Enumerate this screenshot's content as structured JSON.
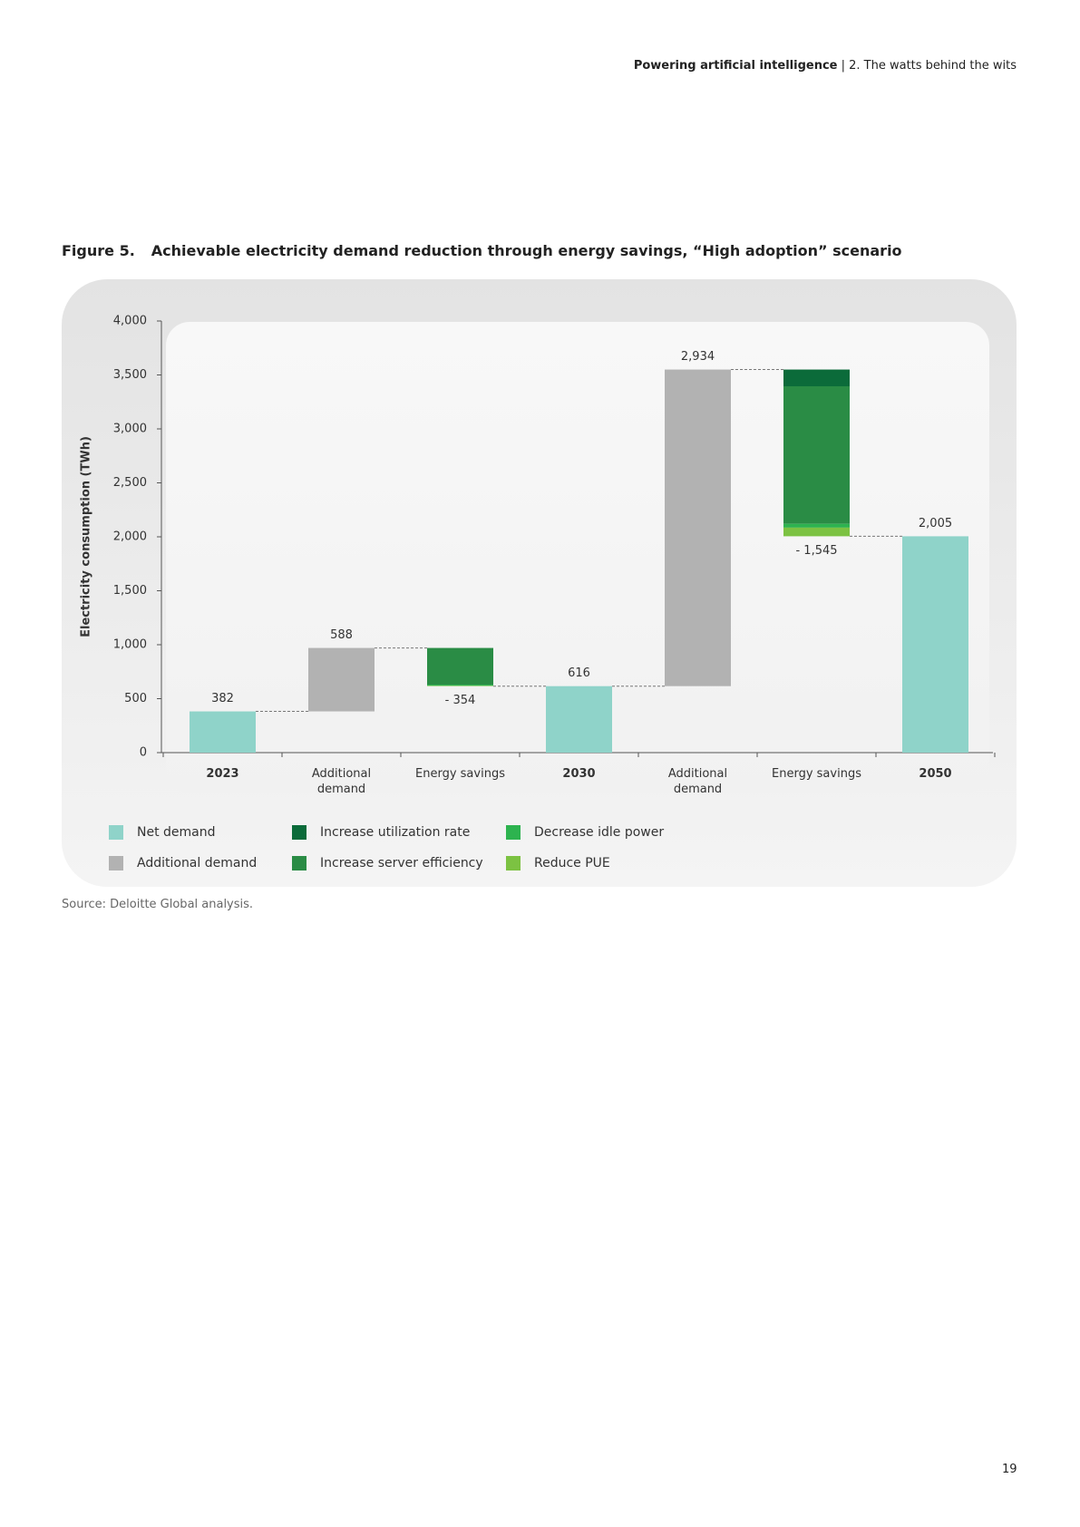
{
  "header": {
    "bold": "Powering artificial intelligence",
    "rest": "| 2. The watts behind the wits"
  },
  "figure_label": "Figure 5.",
  "source": "Source: Deloitte Global analysis.",
  "page_number": "19",
  "chart_data": {
    "type": "waterfall",
    "title": "Achievable electricity demand reduction through energy savings, “High adoption” scenario",
    "y_label": "Electricity consumption (TWh)",
    "categories": [
      "2023",
      "Additional demand",
      "Energy savings",
      "2030",
      "Additional demand",
      "Energy savings",
      "2050"
    ],
    "series": [
      {
        "name": "Net demand",
        "color": "#8fd3c9",
        "values": [
          382,
          null,
          null,
          616,
          null,
          null,
          2005
        ],
        "value_labels": [
          "382",
          null,
          null,
          "616",
          null,
          null,
          "2,005"
        ]
      },
      {
        "name": "Additional demand",
        "color": "#b2b2b2",
        "values": [
          null,
          588,
          null,
          null,
          2934,
          null,
          null
        ],
        "value_labels": [
          null,
          "588",
          null,
          null,
          "2,934",
          null,
          null
        ]
      },
      {
        "name": "Increase utilization rate",
        "color": "#0b6b3a",
        "values": [
          null,
          null,
          null,
          null,
          null,
          -155,
          null
        ]
      },
      {
        "name": "Increase server efficiency",
        "color": "#2a8c45",
        "values": [
          null,
          null,
          -340,
          null,
          null,
          -1275,
          null
        ]
      },
      {
        "name": "Decrease idle power",
        "color": "#2db34f",
        "values": [
          null,
          null,
          -10,
          null,
          null,
          -35,
          null
        ]
      },
      {
        "name": "Reduce PUE",
        "color": "#7cc242",
        "values": [
          null,
          null,
          -4,
          null,
          null,
          -80,
          null
        ]
      }
    ],
    "totals": [
      null,
      null,
      -354,
      null,
      null,
      -1545,
      null
    ],
    "total_labels": [
      null,
      null,
      "- 354",
      null,
      null,
      "- 1,545",
      null
    ],
    "ylim": [
      0,
      4000
    ],
    "yticks": [
      0,
      500,
      {
        "value": 1000,
        "label": "1,000"
      },
      {
        "value": 1500,
        "label": "1,500"
      },
      {
        "value": 2000,
        "label": "2,000"
      },
      {
        "value": 2500,
        "label": "2,500"
      },
      {
        "value": 3000,
        "label": "3,000"
      },
      {
        "value": 3500,
        "label": "3,500"
      },
      {
        "value": 4000,
        "label": "4,000"
      }
    ],
    "grid": false
  }
}
